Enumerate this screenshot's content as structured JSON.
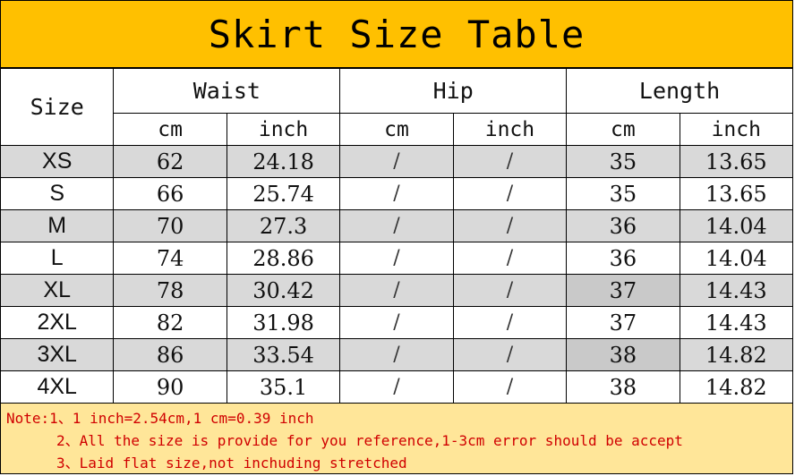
{
  "title": "Skirt Size Table",
  "headers": {
    "size": "Size",
    "waist": "Waist",
    "hip": "Hip",
    "length": "Length"
  },
  "units": [
    "cm",
    "inch",
    "cm",
    "inch",
    "cm",
    "inch"
  ],
  "rows": [
    {
      "size": "XS",
      "waist_cm": "62",
      "waist_in": "24.18",
      "hip_cm": "/",
      "hip_in": "/",
      "len_cm": "35",
      "len_in": "13.65"
    },
    {
      "size": "S",
      "waist_cm": "66",
      "waist_in": "25.74",
      "hip_cm": "/",
      "hip_in": "/",
      "len_cm": "35",
      "len_in": "13.65"
    },
    {
      "size": "M",
      "waist_cm": "70",
      "waist_in": "27.3",
      "hip_cm": "/",
      "hip_in": "/",
      "len_cm": "36",
      "len_in": "14.04"
    },
    {
      "size": "L",
      "waist_cm": "74",
      "waist_in": "28.86",
      "hip_cm": "/",
      "hip_in": "/",
      "len_cm": "36",
      "len_in": "14.04"
    },
    {
      "size": "XL",
      "waist_cm": "78",
      "waist_in": "30.42",
      "hip_cm": "/",
      "hip_in": "/",
      "len_cm": "37",
      "len_in": "14.43"
    },
    {
      "size": "2XL",
      "waist_cm": "82",
      "waist_in": "31.98",
      "hip_cm": "/",
      "hip_in": "/",
      "len_cm": "37",
      "len_in": "14.43"
    },
    {
      "size": "3XL",
      "waist_cm": "86",
      "waist_in": "33.54",
      "hip_cm": "/",
      "hip_in": "/",
      "len_cm": "38",
      "len_in": "14.82"
    },
    {
      "size": "4XL",
      "waist_cm": "90",
      "waist_in": "35.1",
      "hip_cm": "/",
      "hip_in": "/",
      "len_cm": "38",
      "len_in": "14.82"
    }
  ],
  "notes": [
    "Note:1、1 inch=2.54cm,1 cm=0.39 inch",
    "2、All the size is provide for you reference,1-3cm error should be accept",
    "3、Laid flat size,not inchuding stretched"
  ],
  "colors": {
    "title_bg": "#FFC000",
    "note_bg": "#FFE699",
    "note_text": "#D00000",
    "stripe": "#D9D9D9"
  }
}
